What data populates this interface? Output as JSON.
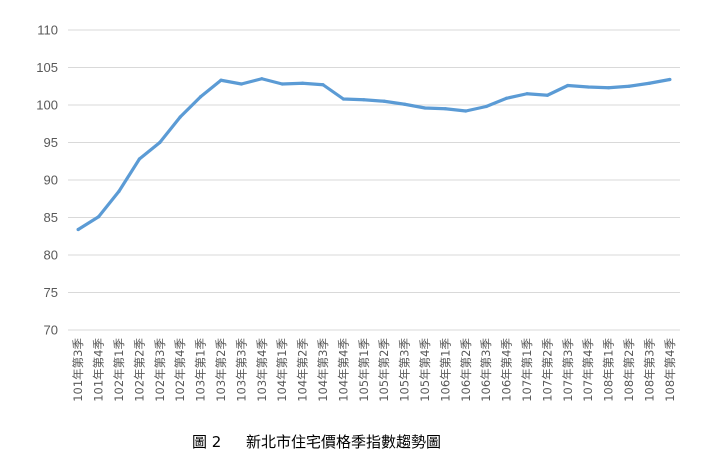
{
  "chart_data": {
    "type": "line",
    "title": "",
    "caption_label": "圖 2",
    "caption_text": "新北市住宅價格季指數趨勢圖",
    "xlabel": "",
    "ylabel": "",
    "ylim": [
      70,
      110
    ],
    "yticks": [
      70,
      75,
      80,
      85,
      90,
      95,
      100,
      105,
      110
    ],
    "grid": true,
    "legend": "none",
    "color": "#5b9bd5",
    "categories": [
      "101年第3季",
      "101年第4季",
      "102年第1季",
      "102年第2季",
      "102年第3季",
      "102年第4季",
      "103年第1季",
      "103年第2季",
      "103年第3季",
      "103年第4季",
      "104年第1季",
      "104年第2季",
      "104年第3季",
      "104年第4季",
      "105年第1季",
      "105年第2季",
      "105年第3季",
      "105年第4季",
      "106年第1季",
      "106年第2季",
      "106年第3季",
      "106年第4季",
      "107年第1季",
      "107年第2季",
      "107年第3季",
      "107年第4季",
      "108年第1季",
      "108年第2季",
      "108年第3季",
      "108年第4季"
    ],
    "series": [
      {
        "values": [
          83.4,
          85.1,
          88.5,
          92.8,
          95.0,
          98.4,
          101.1,
          103.3,
          102.8,
          103.5,
          102.8,
          102.9,
          102.7,
          100.8,
          100.7,
          100.5,
          100.1,
          99.6,
          99.5,
          99.2,
          99.8,
          100.9,
          101.5,
          101.3,
          102.6,
          102.4,
          102.3,
          102.5,
          102.9,
          103.4
        ]
      }
    ]
  }
}
